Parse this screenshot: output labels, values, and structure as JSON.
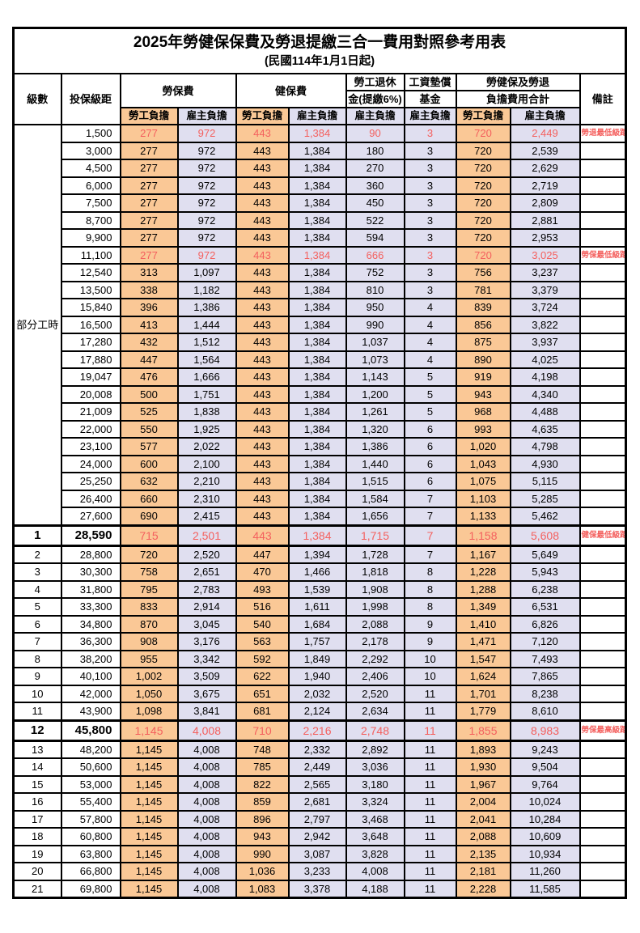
{
  "title": "2025年勞健保保費及勞退提繳三合一費用對照參考用表",
  "subtitle": "(民國114年1月1日起)",
  "header": {
    "level": "級數",
    "bracket": "投保級距",
    "labor_ins": "勞保費",
    "health_ins": "健保費",
    "pension_line1": "勞工退休",
    "pension_line2": "金(提繳6%)",
    "wage_fund_line1": "工資墊償",
    "wage_fund_line2": "基金",
    "total_line1": "勞健保及勞退",
    "total_line2": "負擔費用合計",
    "remark": "備註",
    "employee": "勞工負擔",
    "employer": "雇主負擔"
  },
  "part_time": {
    "label": "部分工時",
    "rowspan": 23
  },
  "colors": {
    "employee_bg": "#FAC896",
    "employer_bg": "#E0DFF0",
    "highlight_text": "#F4605E",
    "border": "#000000"
  },
  "rows": [
    {
      "lv": null,
      "amt": "1,500",
      "v": [
        "277",
        "972",
        "443",
        "1,384",
        "90",
        "3",
        "720",
        "2,449"
      ],
      "note": "勞退最低級距",
      "hl": true,
      "big": false
    },
    {
      "lv": null,
      "amt": "3,000",
      "v": [
        "277",
        "972",
        "443",
        "1,384",
        "180",
        "3",
        "720",
        "2,539"
      ],
      "note": "",
      "hl": false,
      "big": false
    },
    {
      "lv": null,
      "amt": "4,500",
      "v": [
        "277",
        "972",
        "443",
        "1,384",
        "270",
        "3",
        "720",
        "2,629"
      ],
      "note": "",
      "hl": false,
      "big": false
    },
    {
      "lv": null,
      "amt": "6,000",
      "v": [
        "277",
        "972",
        "443",
        "1,384",
        "360",
        "3",
        "720",
        "2,719"
      ],
      "note": "",
      "hl": false,
      "big": false
    },
    {
      "lv": null,
      "amt": "7,500",
      "v": [
        "277",
        "972",
        "443",
        "1,384",
        "450",
        "3",
        "720",
        "2,809"
      ],
      "note": "",
      "hl": false,
      "big": false
    },
    {
      "lv": null,
      "amt": "8,700",
      "v": [
        "277",
        "972",
        "443",
        "1,384",
        "522",
        "3",
        "720",
        "2,881"
      ],
      "note": "",
      "hl": false,
      "big": false
    },
    {
      "lv": null,
      "amt": "9,900",
      "v": [
        "277",
        "972",
        "443",
        "1,384",
        "594",
        "3",
        "720",
        "2,953"
      ],
      "note": "",
      "hl": false,
      "big": false
    },
    {
      "lv": null,
      "amt": "11,100",
      "v": [
        "277",
        "972",
        "443",
        "1,384",
        "666",
        "3",
        "720",
        "3,025"
      ],
      "note": "勞保最低級距",
      "hl": true,
      "big": false
    },
    {
      "lv": null,
      "amt": "12,540",
      "v": [
        "313",
        "1,097",
        "443",
        "1,384",
        "752",
        "3",
        "756",
        "3,237"
      ],
      "note": "",
      "hl": false,
      "big": false
    },
    {
      "lv": null,
      "amt": "13,500",
      "v": [
        "338",
        "1,182",
        "443",
        "1,384",
        "810",
        "3",
        "781",
        "3,379"
      ],
      "note": "",
      "hl": false,
      "big": false
    },
    {
      "lv": null,
      "amt": "15,840",
      "v": [
        "396",
        "1,386",
        "443",
        "1,384",
        "950",
        "4",
        "839",
        "3,724"
      ],
      "note": "",
      "hl": false,
      "big": false
    },
    {
      "lv": null,
      "amt": "16,500",
      "v": [
        "413",
        "1,444",
        "443",
        "1,384",
        "990",
        "4",
        "856",
        "3,822"
      ],
      "note": "",
      "hl": false,
      "big": false
    },
    {
      "lv": null,
      "amt": "17,280",
      "v": [
        "432",
        "1,512",
        "443",
        "1,384",
        "1,037",
        "4",
        "875",
        "3,937"
      ],
      "note": "",
      "hl": false,
      "big": false
    },
    {
      "lv": null,
      "amt": "17,880",
      "v": [
        "447",
        "1,564",
        "443",
        "1,384",
        "1,073",
        "4",
        "890",
        "4,025"
      ],
      "note": "",
      "hl": false,
      "big": false
    },
    {
      "lv": null,
      "amt": "19,047",
      "v": [
        "476",
        "1,666",
        "443",
        "1,384",
        "1,143",
        "5",
        "919",
        "4,198"
      ],
      "note": "",
      "hl": false,
      "big": false
    },
    {
      "lv": null,
      "amt": "20,008",
      "v": [
        "500",
        "1,751",
        "443",
        "1,384",
        "1,200",
        "5",
        "943",
        "4,340"
      ],
      "note": "",
      "hl": false,
      "big": false
    },
    {
      "lv": null,
      "amt": "21,009",
      "v": [
        "525",
        "1,838",
        "443",
        "1,384",
        "1,261",
        "5",
        "968",
        "4,488"
      ],
      "note": "",
      "hl": false,
      "big": false
    },
    {
      "lv": null,
      "amt": "22,000",
      "v": [
        "550",
        "1,925",
        "443",
        "1,384",
        "1,320",
        "6",
        "993",
        "4,635"
      ],
      "note": "",
      "hl": false,
      "big": false
    },
    {
      "lv": null,
      "amt": "23,100",
      "v": [
        "577",
        "2,022",
        "443",
        "1,384",
        "1,386",
        "6",
        "1,020",
        "4,798"
      ],
      "note": "",
      "hl": false,
      "big": false
    },
    {
      "lv": null,
      "amt": "24,000",
      "v": [
        "600",
        "2,100",
        "443",
        "1,384",
        "1,440",
        "6",
        "1,043",
        "4,930"
      ],
      "note": "",
      "hl": false,
      "big": false
    },
    {
      "lv": null,
      "amt": "25,250",
      "v": [
        "632",
        "2,210",
        "443",
        "1,384",
        "1,515",
        "6",
        "1,075",
        "5,115"
      ],
      "note": "",
      "hl": false,
      "big": false
    },
    {
      "lv": null,
      "amt": "26,400",
      "v": [
        "660",
        "2,310",
        "443",
        "1,384",
        "1,584",
        "7",
        "1,103",
        "5,285"
      ],
      "note": "",
      "hl": false,
      "big": false
    },
    {
      "lv": null,
      "amt": "27,600",
      "v": [
        "690",
        "2,415",
        "443",
        "1,384",
        "1,656",
        "7",
        "1,133",
        "5,462"
      ],
      "note": "",
      "hl": false,
      "big": false
    },
    {
      "lv": "1",
      "amt": "28,590",
      "v": [
        "715",
        "2,501",
        "443",
        "1,384",
        "1,715",
        "7",
        "1,158",
        "5,608"
      ],
      "note": "健保最低級距",
      "hl": true,
      "big": true
    },
    {
      "lv": "2",
      "amt": "28,800",
      "v": [
        "720",
        "2,520",
        "447",
        "1,394",
        "1,728",
        "7",
        "1,167",
        "5,649"
      ],
      "note": "",
      "hl": false,
      "big": false
    },
    {
      "lv": "3",
      "amt": "30,300",
      "v": [
        "758",
        "2,651",
        "470",
        "1,466",
        "1,818",
        "8",
        "1,228",
        "5,943"
      ],
      "note": "",
      "hl": false,
      "big": false
    },
    {
      "lv": "4",
      "amt": "31,800",
      "v": [
        "795",
        "2,783",
        "493",
        "1,539",
        "1,908",
        "8",
        "1,288",
        "6,238"
      ],
      "note": "",
      "hl": false,
      "big": false
    },
    {
      "lv": "5",
      "amt": "33,300",
      "v": [
        "833",
        "2,914",
        "516",
        "1,611",
        "1,998",
        "8",
        "1,349",
        "6,531"
      ],
      "note": "",
      "hl": false,
      "big": false
    },
    {
      "lv": "6",
      "amt": "34,800",
      "v": [
        "870",
        "3,045",
        "540",
        "1,684",
        "2,088",
        "9",
        "1,410",
        "6,826"
      ],
      "note": "",
      "hl": false,
      "big": false
    },
    {
      "lv": "7",
      "amt": "36,300",
      "v": [
        "908",
        "3,176",
        "563",
        "1,757",
        "2,178",
        "9",
        "1,471",
        "7,120"
      ],
      "note": "",
      "hl": false,
      "big": false
    },
    {
      "lv": "8",
      "amt": "38,200",
      "v": [
        "955",
        "3,342",
        "592",
        "1,849",
        "2,292",
        "10",
        "1,547",
        "7,493"
      ],
      "note": "",
      "hl": false,
      "big": false
    },
    {
      "lv": "9",
      "amt": "40,100",
      "v": [
        "1,002",
        "3,509",
        "622",
        "1,940",
        "2,406",
        "10",
        "1,624",
        "7,865"
      ],
      "note": "",
      "hl": false,
      "big": false
    },
    {
      "lv": "10",
      "amt": "42,000",
      "v": [
        "1,050",
        "3,675",
        "651",
        "2,032",
        "2,520",
        "11",
        "1,701",
        "8,238"
      ],
      "note": "",
      "hl": false,
      "big": false
    },
    {
      "lv": "11",
      "amt": "43,900",
      "v": [
        "1,098",
        "3,841",
        "681",
        "2,124",
        "2,634",
        "11",
        "1,779",
        "8,610"
      ],
      "note": "",
      "hl": false,
      "big": false
    },
    {
      "lv": "12",
      "amt": "45,800",
      "v": [
        "1,145",
        "4,008",
        "710",
        "2,216",
        "2,748",
        "11",
        "1,855",
        "8,983"
      ],
      "note": "勞保最高級距",
      "hl": true,
      "big": true
    },
    {
      "lv": "13",
      "amt": "48,200",
      "v": [
        "1,145",
        "4,008",
        "748",
        "2,332",
        "2,892",
        "11",
        "1,893",
        "9,243"
      ],
      "note": "",
      "hl": false,
      "big": false
    },
    {
      "lv": "14",
      "amt": "50,600",
      "v": [
        "1,145",
        "4,008",
        "785",
        "2,449",
        "3,036",
        "11",
        "1,930",
        "9,504"
      ],
      "note": "",
      "hl": false,
      "big": false
    },
    {
      "lv": "15",
      "amt": "53,000",
      "v": [
        "1,145",
        "4,008",
        "822",
        "2,565",
        "3,180",
        "11",
        "1,967",
        "9,764"
      ],
      "note": "",
      "hl": false,
      "big": false
    },
    {
      "lv": "16",
      "amt": "55,400",
      "v": [
        "1,145",
        "4,008",
        "859",
        "2,681",
        "3,324",
        "11",
        "2,004",
        "10,024"
      ],
      "note": "",
      "hl": false,
      "big": false
    },
    {
      "lv": "17",
      "amt": "57,800",
      "v": [
        "1,145",
        "4,008",
        "896",
        "2,797",
        "3,468",
        "11",
        "2,041",
        "10,284"
      ],
      "note": "",
      "hl": false,
      "big": false
    },
    {
      "lv": "18",
      "amt": "60,800",
      "v": [
        "1,145",
        "4,008",
        "943",
        "2,942",
        "3,648",
        "11",
        "2,088",
        "10,609"
      ],
      "note": "",
      "hl": false,
      "big": false
    },
    {
      "lv": "19",
      "amt": "63,800",
      "v": [
        "1,145",
        "4,008",
        "990",
        "3,087",
        "3,828",
        "11",
        "2,135",
        "10,934"
      ],
      "note": "",
      "hl": false,
      "big": false
    },
    {
      "lv": "20",
      "amt": "66,800",
      "v": [
        "1,145",
        "4,008",
        "1,036",
        "3,233",
        "4,008",
        "11",
        "2,181",
        "11,260"
      ],
      "note": "",
      "hl": false,
      "big": false
    },
    {
      "lv": "21",
      "amt": "69,800",
      "v": [
        "1,145",
        "4,008",
        "1,083",
        "3,378",
        "4,188",
        "11",
        "2,228",
        "11,585"
      ],
      "note": "",
      "hl": false,
      "big": false
    }
  ]
}
